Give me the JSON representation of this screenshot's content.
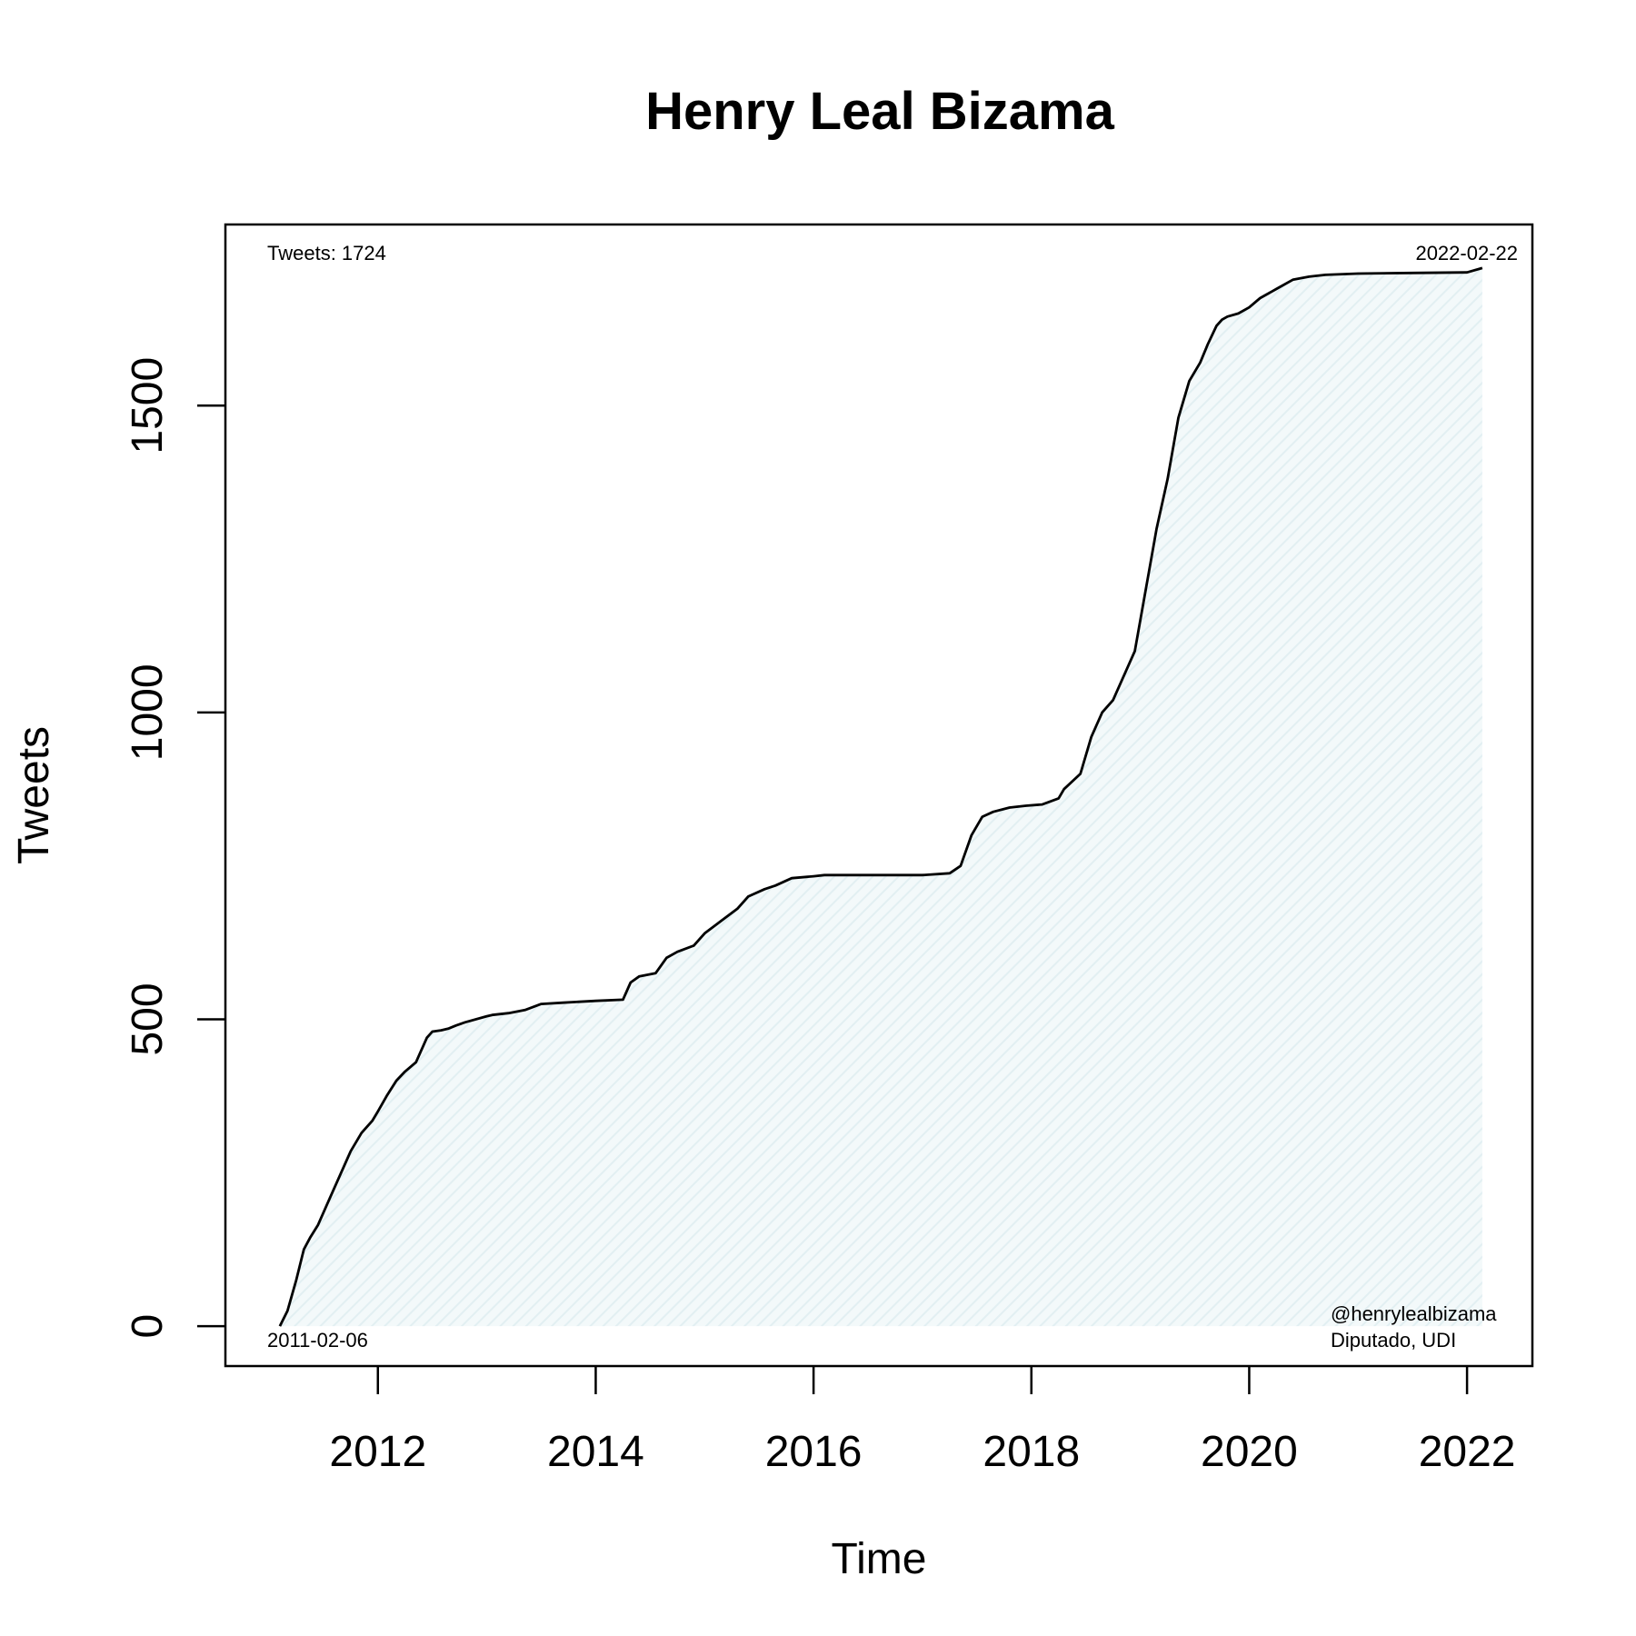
{
  "chart_data": {
    "type": "area",
    "title": "Henry Leal Bizama",
    "xlabel": "Time",
    "ylabel": "Tweets",
    "xlim": [
      2010.6,
      2022.6
    ],
    "ylim": [
      -65,
      1795
    ],
    "x_ticks": [
      2012,
      2014,
      2016,
      2018,
      2020,
      2022
    ],
    "y_ticks": [
      0,
      500,
      1000,
      1500
    ],
    "grid": false,
    "fill_color": "#e6f2f4",
    "line_color": "#000000",
    "annotations": {
      "total": "Tweets: 1724",
      "end_date": "2022-02-22",
      "start_date": "2011-02-06",
      "handle": "@henrylealbizama",
      "role": "Diputado, UDI"
    },
    "series": [
      {
        "x": [
          2011.1,
          2011.17,
          2011.25,
          2011.32,
          2011.38,
          2011.45,
          2011.55,
          2011.65,
          2011.75,
          2011.85,
          2011.95,
          2012.0,
          2012.08,
          2012.17,
          2012.25,
          2012.35,
          2012.45,
          2012.5,
          2012.58,
          2012.65,
          2012.72,
          2012.8,
          2013.0,
          2013.05,
          2013.2,
          2013.35,
          2013.5,
          2013.7,
          2014.0,
          2014.25,
          2014.32,
          2014.4,
          2014.55,
          2014.65,
          2014.75,
          2014.9,
          2015.0,
          2015.15,
          2015.3,
          2015.4,
          2015.55,
          2015.65,
          2015.8,
          2016.0,
          2016.1,
          2016.5,
          2017.0,
          2017.25,
          2017.35,
          2017.45,
          2017.55,
          2017.65,
          2017.8,
          2017.95,
          2018.1,
          2018.25,
          2018.3,
          2018.45,
          2018.55,
          2018.65,
          2018.75,
          2018.85,
          2018.95,
          2019.05,
          2019.15,
          2019.25,
          2019.35,
          2019.45,
          2019.55,
          2019.62,
          2019.7,
          2019.75,
          2019.8,
          2019.9,
          2020.0,
          2020.1,
          2020.25,
          2020.4,
          2020.55,
          2020.7,
          2021.0,
          2021.5,
          2022.0,
          2022.14
        ],
        "y": [
          0,
          25,
          75,
          125,
          145,
          165,
          205,
          245,
          285,
          315,
          335,
          350,
          375,
          400,
          415,
          430,
          470,
          480,
          482,
          485,
          490,
          495,
          505,
          507,
          510,
          515,
          525,
          527,
          530,
          532,
          560,
          570,
          575,
          600,
          610,
          620,
          640,
          660,
          680,
          700,
          712,
          718,
          730,
          733,
          735,
          735,
          735,
          738,
          750,
          800,
          830,
          838,
          845,
          848,
          850,
          860,
          875,
          900,
          960,
          1000,
          1020,
          1060,
          1100,
          1200,
          1300,
          1380,
          1480,
          1540,
          1570,
          1600,
          1630,
          1640,
          1645,
          1650,
          1660,
          1675,
          1690,
          1705,
          1710,
          1713,
          1715,
          1716,
          1717,
          1724
        ]
      }
    ]
  }
}
